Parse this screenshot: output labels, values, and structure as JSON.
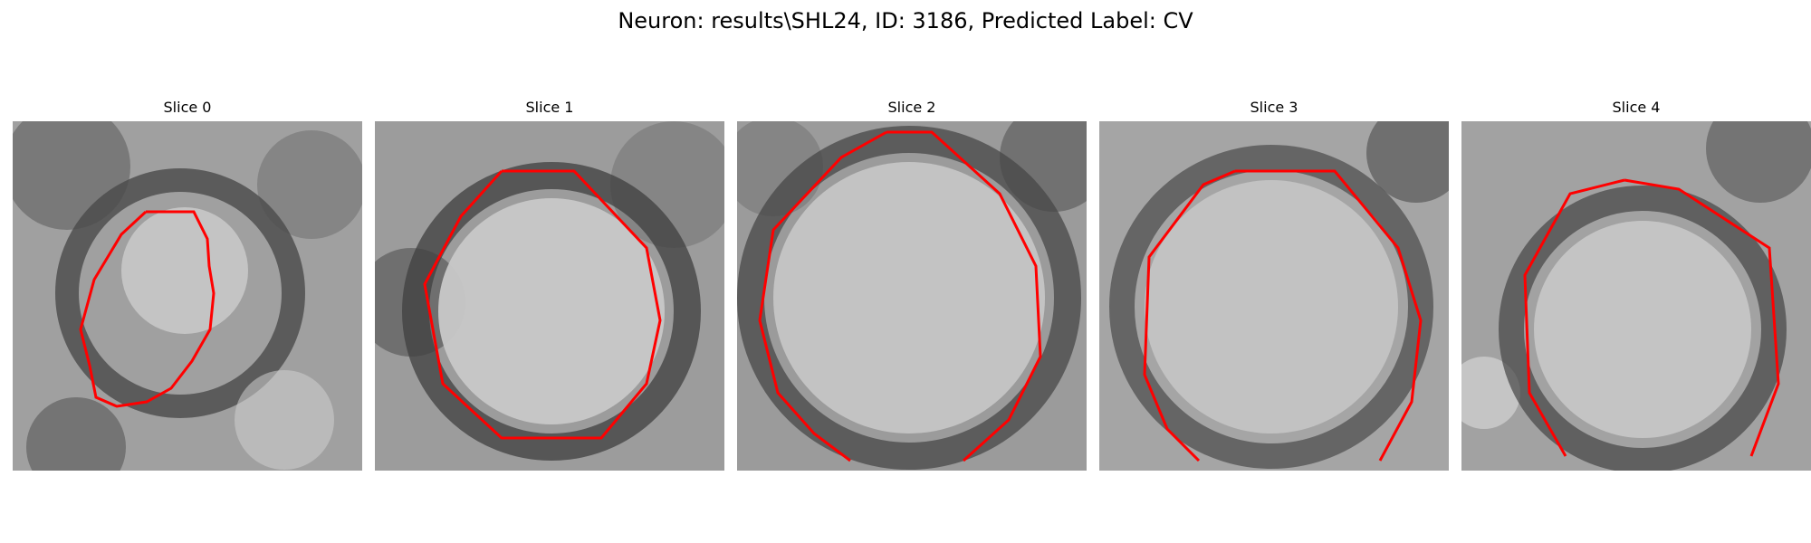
{
  "figure": {
    "title": "Neuron: results\\SHL24, ID: 3186, Predicted Label: CV"
  },
  "panels": [
    {
      "title": "Slice 0",
      "contour_color": "#ff0000"
    },
    {
      "title": "Slice 1",
      "contour_color": "#ff0000"
    },
    {
      "title": "Slice 2",
      "contour_color": "#ff0000"
    },
    {
      "title": "Slice 3",
      "contour_color": "#ff0000"
    },
    {
      "title": "Slice 4",
      "contour_color": "#ff0000"
    }
  ],
  "colormap": "gray"
}
